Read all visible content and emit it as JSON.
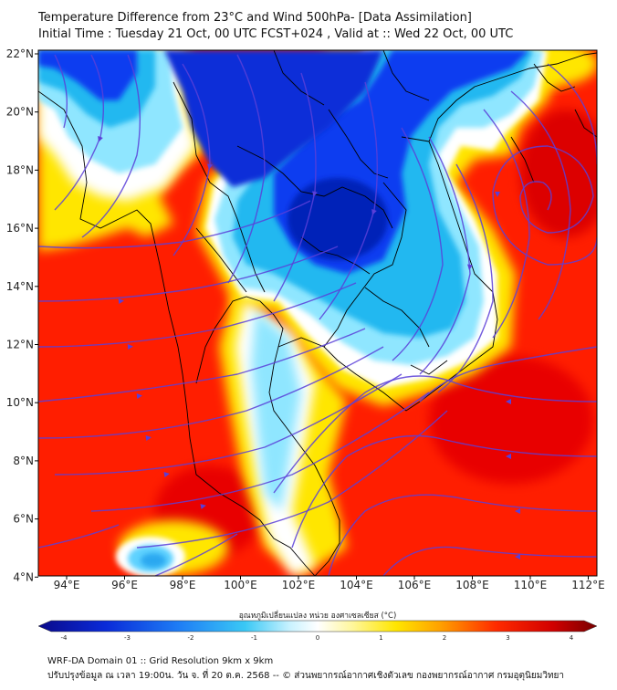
{
  "header": {
    "title_line1": "Temperature Difference from 23°C and Wind 500hPa- [Data Assimilation]",
    "title_line2": "Initial Time : Tuesday 21 Oct, 00 UTC FCST+024 , Valid at ::  Wed 22 Oct, 00 UTC"
  },
  "map": {
    "lon_ticks": [
      "94°E",
      "96°E",
      "98°E",
      "100°E",
      "102°E",
      "104°E",
      "106°E",
      "108°E",
      "110°E",
      "112°E"
    ],
    "lat_ticks": [
      "22°N",
      "20°N",
      "18°N",
      "16°N",
      "14°N",
      "12°N",
      "10°N",
      "8°N",
      "6°N",
      "4°N"
    ],
    "colors": {
      "warm": "#ff1e00",
      "hot": "#e00000",
      "mild": "#ffe600",
      "neutral": "#ffffff",
      "cool": "#8fe6ff",
      "cold": "#23b8f0",
      "very_cold": "#0a3cf0",
      "streamline": "#5a3fd8",
      "coast": "#000000"
    }
  },
  "colorbar": {
    "title": "อุณหภูมิเปลี่ยนแปลง หน่วย องศาเซลเซียส (°C)",
    "ticks": [
      "-4",
      "-3",
      "-2",
      "-1",
      "0",
      "1",
      "2",
      "3",
      "4"
    ],
    "min": -4,
    "max": 4
  },
  "footer": {
    "line1": "WRF-DA Domain 01 :: Grid Resolution 9km x 9km",
    "line2": "ปรับปรุงข้อมูล ณ เวลา 19:00น. วัน จ. ที่ 20 ต.ค. 2568 -- © ส่วนพยากรณ์อากาศเชิงตัวเลข กองพยากรณ์อากาศ กรมอุตุนิยมวิทยา"
  }
}
